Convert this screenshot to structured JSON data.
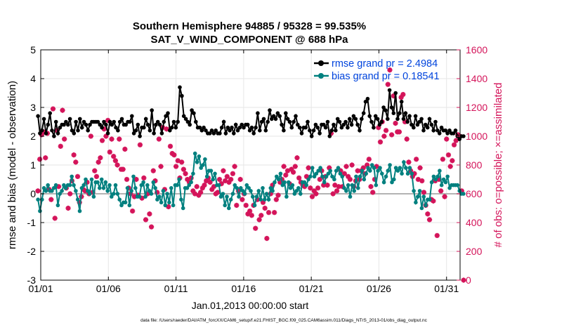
{
  "chart_data": {
    "type": "line",
    "title": "Southern Hemisphere 94885 / 95328 = 99.535%",
    "subtitle": "SAT_V_WIND_COMPONENT @ 688 hPa",
    "xlabel": "Jan.01,2013 00:00:00 start",
    "ylabel_left": "rmse and bias (model - observation)",
    "ylabel_right": "# of obs: o=possible; ×=assimilated",
    "footnote": "data file: /Users/raeder/DAI/ATM_forcXX/CAM6_setup/f.e21.FHIST_BGC.f09_025.CAM6assim.011/Diags_NTrS_2013-01/obs_diag_output.nc",
    "xlim": [
      1,
      32
    ],
    "ylim_left": [
      -3,
      5
    ],
    "ylim_right": [
      0,
      1600
    ],
    "x_ticks": [
      1,
      6,
      11,
      16,
      21,
      26,
      31
    ],
    "x_tick_labels": [
      "01/01",
      "01/06",
      "01/11",
      "01/16",
      "01/21",
      "01/26",
      "01/31"
    ],
    "y_ticks_left": [
      -3,
      -2,
      -1,
      0,
      1,
      2,
      3,
      4,
      5
    ],
    "y_ticks_right": [
      0,
      200,
      400,
      600,
      800,
      1000,
      1200,
      1400,
      1600
    ],
    "grid": true,
    "legend_position": "top-right",
    "colors": {
      "rmse": "#000000",
      "bias": "#00807f",
      "obs": "#d4145a",
      "zero_line": "#b3b3b3",
      "legend_text": "#0044dd",
      "axis": "#000000"
    },
    "series": [
      {
        "name": "rmse grand pr = 2.4984",
        "axis": "left",
        "values": [
          2.7,
          2.1,
          2.2,
          2.6,
          2.1,
          2.4,
          2.8,
          2.2,
          2.0,
          2.5,
          2.1,
          2.3,
          2.4,
          2.4,
          2.5,
          2.4,
          2.6,
          2.2,
          2.1,
          2.5,
          2.2,
          2.6,
          2.3,
          2.5,
          2.4,
          2.2,
          2.4,
          2.5,
          2.5,
          2.5,
          2.5,
          2.4,
          2.3,
          2.5,
          2.4,
          2.1,
          2.5,
          2.4,
          2.5,
          2.3,
          2.2,
          2.5,
          2.6,
          2.4,
          2.4,
          2.5,
          2.5,
          2.7,
          2.1,
          2.2,
          2.4,
          2.0,
          2.3,
          2.3,
          2.6,
          2.4,
          2.2,
          2.9,
          2.1,
          2.4,
          2.5,
          2.4,
          2.1,
          2.5,
          2.7,
          2.8,
          2.2,
          2.3,
          2.5,
          2.3,
          2.5,
          3.7,
          3.4,
          2.7,
          2.6,
          2.5,
          2.4,
          2.9,
          2.8,
          2.5,
          2.3,
          2.3,
          2.2,
          2.3,
          2.2,
          2.1,
          2.1,
          2.2,
          2.1,
          2.2,
          2.1,
          2.1,
          2.3,
          2.5,
          2.1,
          2.3,
          2.2,
          2.3,
          2.1,
          2.4,
          2.2,
          2.3,
          2.4,
          2.3,
          2.4,
          2.4,
          2.2,
          2.3,
          2.1,
          2.3,
          2.8,
          2.2,
          2.5,
          2.6,
          2.2,
          2.5,
          2.9,
          2.6,
          2.7,
          2.6,
          2.8,
          2.7,
          2.4,
          2.2,
          2.8,
          2.6,
          2.5,
          2.3,
          2.5,
          2.7,
          2.4,
          2.3,
          2.1,
          2.3,
          2.3,
          2.5,
          2.2,
          2.0,
          2.2,
          2.4,
          2.3,
          2.1,
          2.4,
          2.4,
          2.3,
          2.5,
          2.0,
          2.2,
          2.4,
          2.2,
          2.6,
          2.5,
          2.3,
          2.4,
          2.5,
          2.3,
          2.6,
          2.4,
          2.7,
          2.6,
          2.4,
          2.2,
          2.6,
          2.8,
          3.2,
          3.3,
          2.7,
          2.5,
          2.3,
          2.7,
          2.6,
          2.4,
          2.5,
          3.0,
          2.9,
          2.6,
          3.6,
          3.0,
          2.8,
          3.5,
          2.6,
          2.8,
          3.2,
          2.6,
          2.8,
          2.5,
          2.7,
          2.4,
          2.3,
          2.7,
          2.4,
          2.5,
          2.6,
          2.2,
          2.4,
          2.3,
          2.6,
          2.4,
          2.2,
          2.5,
          2.2,
          2.1,
          2.3,
          2.2,
          2.2,
          2.1,
          2.2,
          2.1,
          2.1,
          2.2,
          2.0,
          1.9,
          2.0,
          2.0
        ]
      },
      {
        "name": "bias grand pr = 0.18541",
        "axis": "left",
        "values": [
          -0.2,
          -0.6,
          -0.2,
          0.2,
          0.1,
          0.3,
          0.1,
          0.1,
          0.2,
          0.3,
          -0.4,
          0.0,
          0.1,
          0.3,
          0.2,
          0.3,
          0.3,
          0.6,
          0.3,
          0.1,
          -0.2,
          -0.6,
          0.2,
          0.3,
          0.5,
          0.1,
          0.0,
          0.5,
          -0.1,
          0.4,
          0.4,
          0.2,
          0.5,
          0.2,
          0.4,
          0.1,
          0.3,
          -0.1,
          0.0,
          0.3,
          0.0,
          -0.2,
          -0.4,
          -0.3,
          -0.3,
          0.2,
          -0.4,
          0.1,
          0.6,
          0.2,
          -0.1,
          -0.1,
          0.3,
          0.4,
          -0.1,
          0.3,
          0.1,
          0.0,
          0.4,
          0.2,
          -0.2,
          -0.1,
          -0.3,
          0.1,
          -0.4,
          0.0,
          -0.3,
          0.2,
          -0.4,
          0.3,
          0.3,
          0.5,
          -0.2,
          -0.5,
          0.2,
          0.2,
          0.3,
          0.4,
          0.7,
          1.4,
          1.1,
          1.3,
          0.9,
          1.0,
          1.2,
          0.6,
          0.8,
          0.8,
          0.5,
          0.7,
          0.3,
          0.3,
          -0.1,
          0.0,
          -0.4,
          -0.1,
          -0.5,
          -0.2,
          0.0,
          0.3,
          0.2,
          -0.1,
          0.2,
          0.1,
          0.0,
          0.3,
          0.2,
          0.1,
          -0.1,
          -0.4,
          -0.1,
          0.1,
          -0.2,
          0.2,
          -0.2,
          0.0,
          -0.2,
          0.2,
          0.1,
          0.4,
          0.6,
          0.5,
          0.7,
          0.3,
          0.4,
          -0.1,
          0.4,
          0.2,
          0.3,
          0.0,
          0.1,
          0.2,
          0.0,
          0.4,
          0.4,
          0.3,
          0.5,
          0.6,
          0.9,
          0.6,
          0.7,
          0.8,
          0.9,
          0.6,
          0.4,
          0.6,
          0.7,
          0.8,
          0.6,
          0.5,
          0.8,
          0.9,
          0.7,
          0.6,
          0.2,
          0.1,
          0.3,
          -0.1,
          0.3,
          0.1,
          0.6,
          0.2,
          0.6,
          0.8,
          0.5,
          0.7,
          0.9,
          0.8,
          1.0,
          0.9,
          0.3,
          0.8,
          0.9,
          0.7,
          0.4,
          0.6,
          0.8,
          1.0,
          0.4,
          0.5,
          0.9,
          0.8,
          0.9,
          0.7,
          1.1,
          0.9,
          0.7,
          0.9,
          0.7,
          0.1,
          -0.3,
          -0.1,
          0.1,
          -0.5,
          -0.1,
          -0.4,
          -0.2,
          -0.2,
          0.4,
          0.6,
          0.5,
          0.6,
          0.8,
          0.3,
          0.5,
          0.4,
          0.6,
          0.2,
          0.3,
          0.3,
          0.3,
          0.3,
          0.1,
          0.0,
          0.0
        ]
      },
      {
        "name": "obs assimilated",
        "axis": "right",
        "values": [
          620,
          840,
          1010,
          1030,
          850,
          1020,
          630,
          560,
          1190,
          430,
          1040,
          650,
          930,
          1180,
          980,
          640,
          500,
          600,
          690,
          870,
          820,
          720,
          540,
          580,
          630,
          620,
          680,
          600,
          1000,
          610,
          760,
          720,
          820,
          850,
          970,
          1050,
          1000,
          1110,
          890,
          980,
          860,
          830,
          800,
          980,
          770,
          770,
          910,
          700,
          640,
          600,
          480,
          580,
          700,
          590,
          940,
          570,
          710,
          420,
          600,
          460,
          370,
          760,
          690,
          610,
          980,
          790,
          1060,
          630,
          1050,
          510,
          930,
          880,
          870,
          790,
          830,
          710,
          820,
          770,
          740,
          700,
          680,
          710,
          620,
          600,
          650,
          590,
          610,
          640,
          660,
          690,
          710,
          680,
          630,
          650,
          600,
          610,
          700,
          670,
          760,
          690,
          720,
          680,
          700,
          740,
          790,
          520,
          620,
          700,
          560,
          600,
          520,
          460,
          480,
          450,
          520,
          360,
          560,
          420,
          450,
          540,
          500,
          290,
          470,
          600,
          660,
          470,
          560,
          590,
          680,
          700,
          790,
          730,
          760,
          670,
          770,
          750,
          790,
          850,
          710,
          680,
          660,
          650,
          720,
          780,
          640,
          580,
          620,
          600,
          640,
          700,
          760,
          660,
          720,
          660,
          780,
          1020,
          600,
          660,
          620,
          650,
          760,
          650,
          740,
          790,
          720,
          700,
          800,
          650,
          690,
          760,
          700,
          760,
          780,
          740,
          800,
          840,
          650,
          610,
          700,
          790,
          1060,
          960,
          1100,
          1000,
          1040,
          1360,
          1460,
          1010,
          1280,
          1090,
          1030,
          1030,
          1270,
          1290,
          1100,
          980,
          820,
          760,
          720,
          740,
          840,
          700,
          780,
          690,
          610,
          520,
          460,
          420,
          560,
          550,
          690,
          310,
          700,
          620,
          840,
          580,
          980,
          870,
          790,
          830,
          940,
          970,
          1010,
          1000,
          620,
          0
        ]
      }
    ]
  }
}
